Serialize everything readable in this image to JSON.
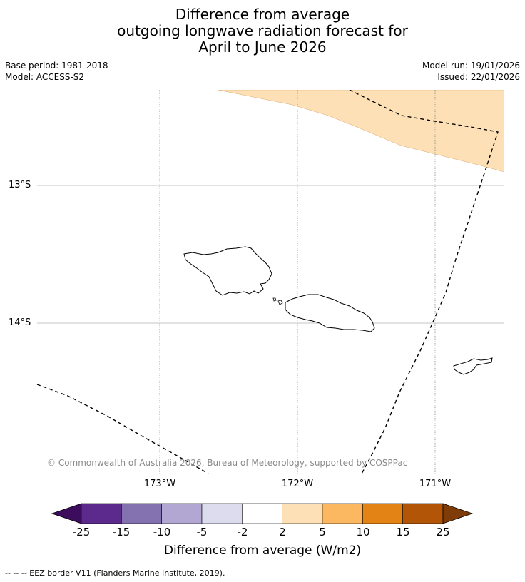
{
  "title": {
    "line1": "Difference from average",
    "line2": "outgoing longwave radiation forecast for",
    "line3": "April to June 2026"
  },
  "meta": {
    "base_period": "Base period: 1981-2018",
    "model": "Model: ACCESS-S2",
    "model_run": "Model run: 19/01/2026",
    "issued": "Issued: 22/01/2026"
  },
  "map": {
    "region": "Samoa",
    "lat_labels": [
      "13°S",
      "14°S"
    ],
    "lon_labels": [
      "173°W",
      "172°W",
      "171°W"
    ],
    "copyright": "© Commonwealth of Australia 2026, Bureau of Meteorology, supported by COSPPac",
    "shaded_category": "2 to 5",
    "colors": {
      "shading": "#fde0b6",
      "coast": "#000000",
      "gridline": "#b0b0b0"
    }
  },
  "colorbar": {
    "ticks": [
      "-25",
      "-15",
      "-10",
      "-5",
      "-2",
      "2",
      "5",
      "10",
      "15",
      "25"
    ],
    "colors": [
      "#3c0d5c",
      "#5c2a8c",
      "#8371b0",
      "#b1a7d2",
      "#dcdcee",
      "#ffffff",
      "#fde0b6",
      "#fcb761",
      "#e38215",
      "#b35506",
      "#7f3b08"
    ],
    "label": "Difference from average (W/m2)"
  },
  "legend": {
    "eez_note": "--  --  -- EEZ border V11 (Flanders Marine Institute, 2019)."
  }
}
